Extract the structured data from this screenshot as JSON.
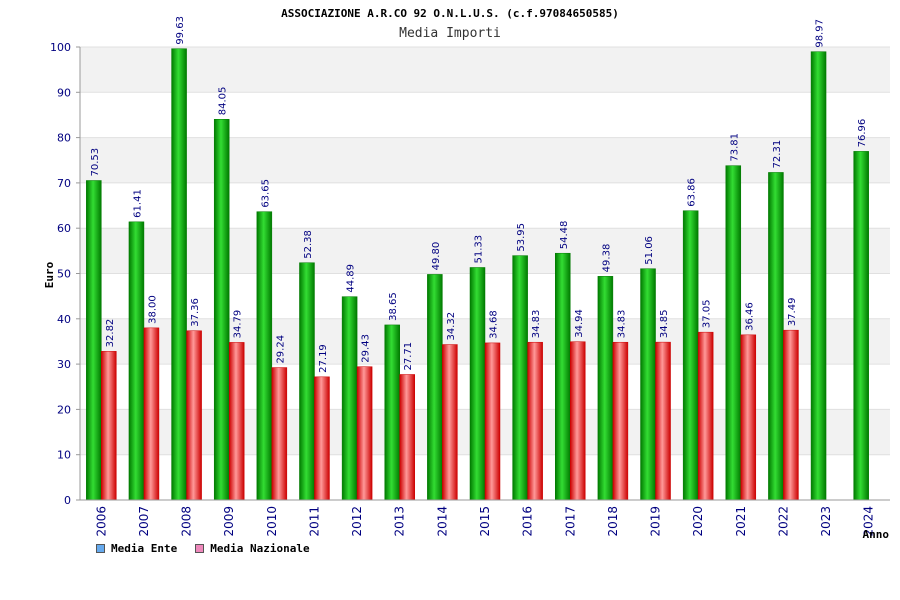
{
  "colors": {
    "ente_dark": "#007a00",
    "ente_light": "#33dd33",
    "nazionale_dark": "#cc0000",
    "nazionale_light": "#ff9999",
    "legend_ente": "#66aaee",
    "legend_nazionale": "#ee88bb",
    "band": "#f2f2f2",
    "tick_text": "#000080"
  },
  "chart_data": {
    "type": "bar",
    "title": "ASSOCIAZIONE A.R.CO 92 O.N.L.U.S. (c.f.97084650585)",
    "subtitle": "Media Importi",
    "xlabel": "Anno",
    "ylabel": "Euro",
    "ylim": [
      0,
      100
    ],
    "yticks": [
      0,
      10,
      20,
      30,
      40,
      50,
      60,
      70,
      80,
      90,
      100
    ],
    "grid": true,
    "legend_position": "bottom-left",
    "categories": [
      "2006",
      "2007",
      "2008",
      "2009",
      "2010",
      "2011",
      "2012",
      "2013",
      "2014",
      "2015",
      "2016",
      "2017",
      "2018",
      "2019",
      "2020",
      "2021",
      "2022",
      "2023",
      "2024"
    ],
    "series": [
      {
        "name": "Media Ente",
        "values": [
          70.53,
          61.41,
          99.63,
          84.05,
          63.65,
          52.38,
          44.89,
          38.65,
          49.8,
          51.33,
          53.95,
          54.48,
          49.38,
          51.06,
          63.86,
          73.81,
          72.31,
          98.97,
          76.96
        ],
        "labels": [
          "70.53",
          "61.41",
          "99.63",
          "84.05",
          "63.65",
          "52.38",
          "44.89",
          "38.65",
          "49.80",
          "51.33",
          "53.95",
          "54.48",
          "49.38",
          "51.06",
          "63.86",
          "73.81",
          "72.31",
          "98.97",
          "76.96"
        ]
      },
      {
        "name": "Media Nazionale",
        "values": [
          32.82,
          38.0,
          37.36,
          34.79,
          29.24,
          27.19,
          29.43,
          27.71,
          34.32,
          34.68,
          34.83,
          34.94,
          34.83,
          34.85,
          37.05,
          36.46,
          37.49,
          null,
          null
        ],
        "labels": [
          "32.82",
          "38.00",
          "37.36",
          "34.79",
          "29.24",
          "27.19",
          "29.43",
          "27.71",
          "34.32",
          "34.68",
          "34.83",
          "34.94",
          "34.83",
          "34.85",
          "37.05",
          "36.46",
          "37.49",
          null,
          null
        ]
      }
    ]
  }
}
